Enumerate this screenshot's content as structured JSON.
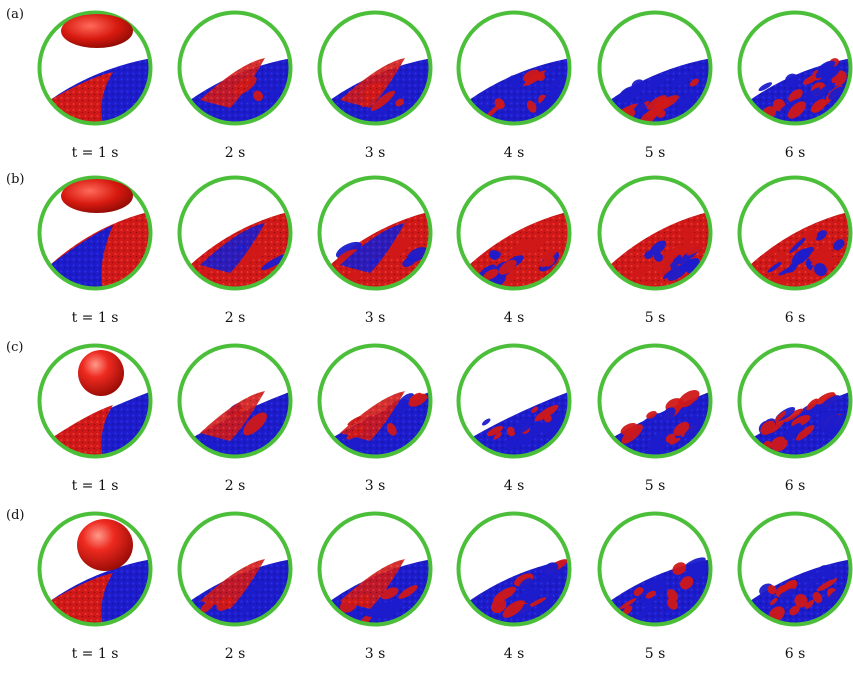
{
  "figure": {
    "rows": [
      {
        "label": "(a)",
        "particle_shape": "oblate-ellipsoid",
        "times": [
          "t = 1 s",
          "2 s",
          "3 s",
          "4 s",
          "5 s",
          "6 s"
        ],
        "layer_order": [
          "red",
          "blue"
        ]
      },
      {
        "label": "(b)",
        "particle_shape": "oblate-ellipsoid",
        "times": [
          "t = 1 s",
          "2 s",
          "3 s",
          "4 s",
          "5 s",
          "6 s"
        ],
        "layer_order": [
          "blue",
          "red"
        ]
      },
      {
        "label": "(c)",
        "particle_shape": "sphere",
        "times": [
          "t = 1 s",
          "2 s",
          "3 s",
          "4 s",
          "5 s",
          "6 s"
        ],
        "layer_order": [
          "red",
          "blue"
        ]
      },
      {
        "label": "(d)",
        "particle_shape": "prolate-sphere",
        "times": [
          "t = 1 s",
          "2 s",
          "3 s",
          "4 s",
          "5 s",
          "6 s"
        ],
        "layer_order": [
          "red",
          "blue"
        ]
      }
    ],
    "colors": {
      "drum_rim": "#4cbf3a",
      "red_particles": "#d01818",
      "blue_particles": "#1c1ccc"
    }
  }
}
